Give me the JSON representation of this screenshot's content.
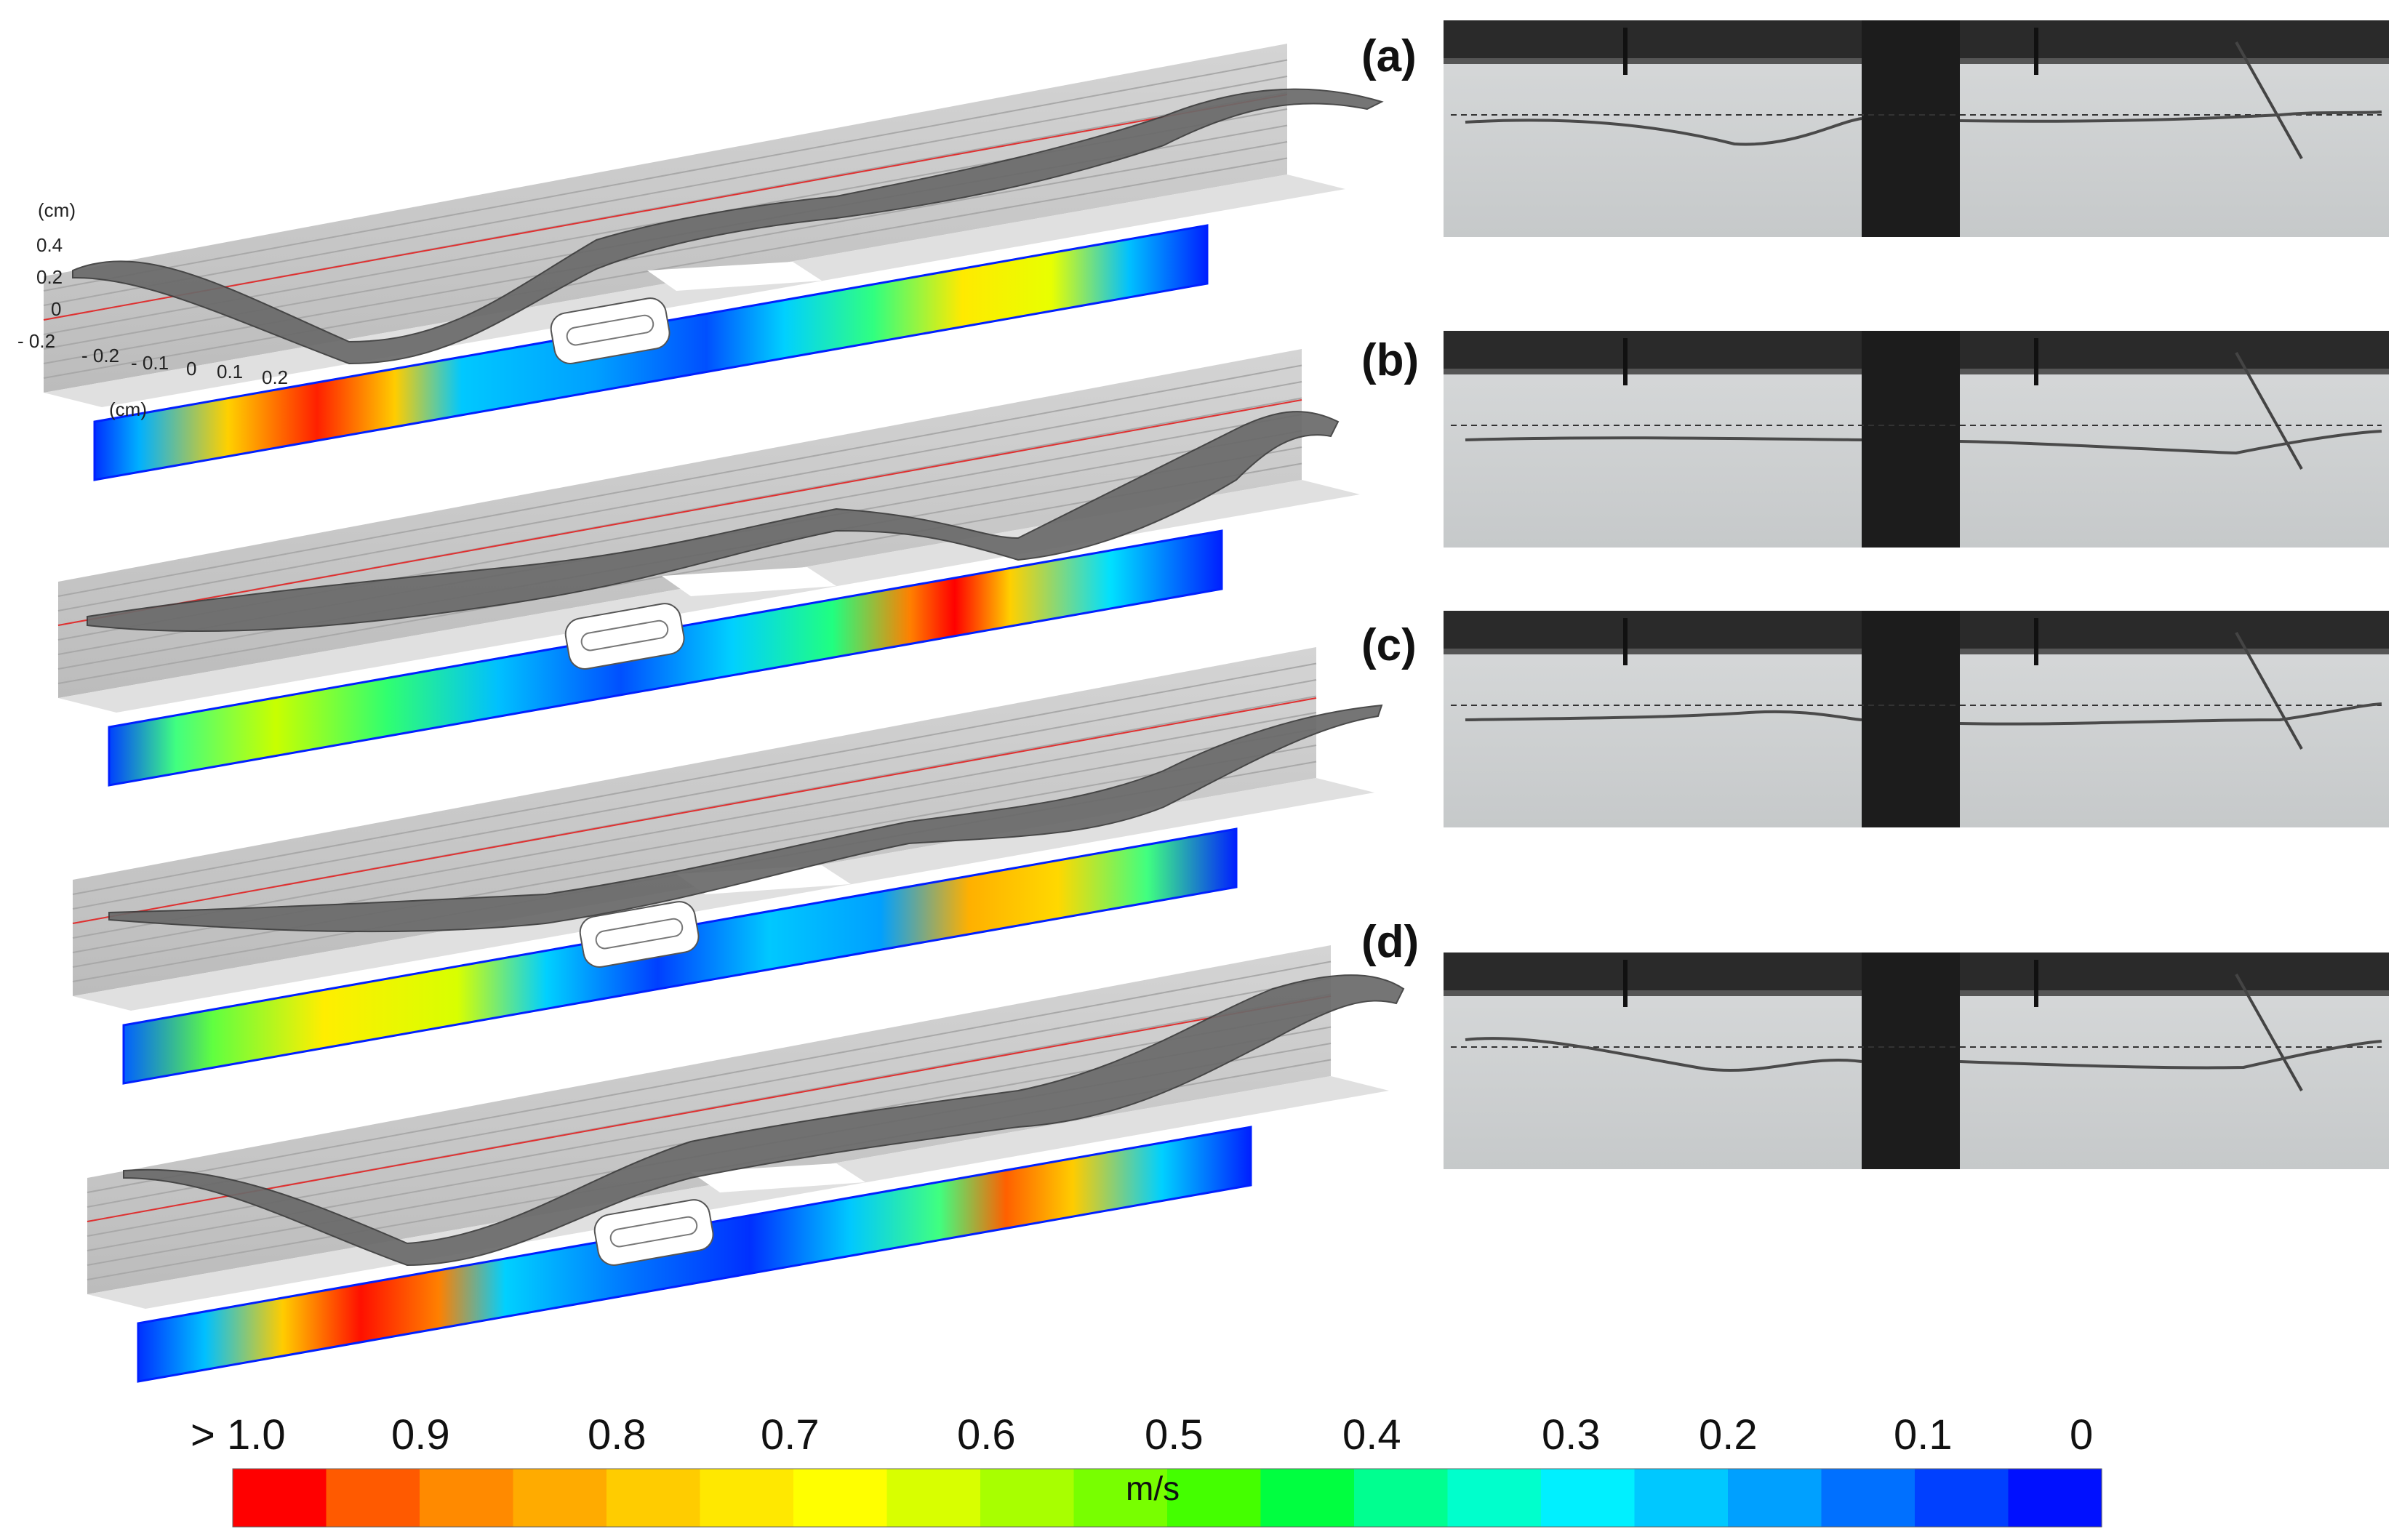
{
  "panels": [
    {
      "label": "(a)"
    },
    {
      "label": "(b)"
    },
    {
      "label": "(c)"
    },
    {
      "label": "(d)"
    }
  ],
  "axes": {
    "z_unit": "(cm)",
    "z_ticks": [
      "0.4",
      "0.2",
      "0",
      "- 0.2"
    ],
    "y_unit": "(cm)",
    "y_ticks": [
      "- 0.2",
      "- 0.1",
      "0",
      "0.1",
      "0.2"
    ]
  },
  "colorbar": {
    "unit": "m/s",
    "tick_labels": [
      "> 1.0",
      "0.9",
      "0.8",
      "0.7",
      "0.6",
      "0.5",
      "0.4",
      "0.3",
      "0.2",
      "0.1",
      "0"
    ],
    "colors": [
      "#ff0000",
      "#ff5a00",
      "#ff8a00",
      "#ffab00",
      "#ffcc00",
      "#ffe800",
      "#ffff00",
      "#d8ff00",
      "#a8ff00",
      "#78ff00",
      "#44ff00",
      "#00ff40",
      "#00ff90",
      "#00ffcc",
      "#00f0ff",
      "#00c8ff",
      "#00a0ff",
      "#0070ff",
      "#0040ff",
      "#0010ff"
    ]
  },
  "colors": {
    "wave_surface": "#6a6a6a",
    "wall": "#c8c8c8",
    "water_line": "#e03030",
    "tank_frame": "#2a2a2a"
  }
}
